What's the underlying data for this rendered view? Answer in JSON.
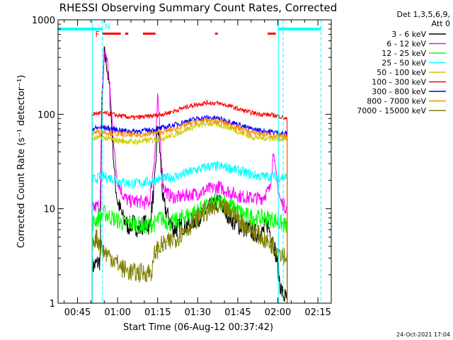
{
  "chart_data": {
    "type": "line",
    "title": "RHESSI Observing Summary Count Rates, Corrected",
    "xlabel": "Start Time (06-Aug-12 00:37:42)",
    "ylabel": "Corrected Count Rate (s⁻¹ detector⁻¹)",
    "yscale": "log",
    "ylim": [
      1,
      1000
    ],
    "xlim_minutes": [
      37.7,
      140.0
    ],
    "x_ticks": [
      {
        "t": 45,
        "label": "00:45"
      },
      {
        "t": 60,
        "label": "01:00"
      },
      {
        "t": 75,
        "label": "01:15"
      },
      {
        "t": 90,
        "label": "01:30"
      },
      {
        "t": 105,
        "label": "01:45"
      },
      {
        "t": 120,
        "label": "02:00"
      },
      {
        "t": 135,
        "label": "02:15"
      }
    ],
    "y_ticks": [
      {
        "v": 1,
        "label": "1"
      },
      {
        "v": 10,
        "label": "10"
      },
      {
        "v": 100,
        "label": "100"
      },
      {
        "v": 1000,
        "label": "1000"
      }
    ],
    "legend_header": [
      "Det 1,3,5,6,9,",
      "Att 0"
    ],
    "annotations": {
      "night_label": "N",
      "flare_label": "F"
    },
    "footer_date": "24-Oct-2021 17:04",
    "data_window_minutes": [
      50.5,
      123.5
    ],
    "series": [
      {
        "name": "3 - 6 keV",
        "color": "#000000",
        "points": [
          [
            50.5,
            2.4
          ],
          [
            52,
            2.6
          ],
          [
            53.5,
            2.8
          ],
          [
            54,
            80
          ],
          [
            55,
            440
          ],
          [
            56,
            330
          ],
          [
            57,
            180
          ],
          [
            58,
            60
          ],
          [
            59,
            20
          ],
          [
            60,
            12
          ],
          [
            62,
            8
          ],
          [
            64,
            6.5
          ],
          [
            66,
            7
          ],
          [
            68,
            6
          ],
          [
            70,
            7
          ],
          [
            72,
            6.5
          ],
          [
            74,
            20
          ],
          [
            75,
            80
          ],
          [
            76,
            35
          ],
          [
            77,
            12
          ],
          [
            79,
            8
          ],
          [
            81,
            6
          ],
          [
            84,
            6.5
          ],
          [
            87,
            7
          ],
          [
            90,
            8
          ],
          [
            94,
            10
          ],
          [
            98,
            12
          ],
          [
            101,
            9
          ],
          [
            104,
            7
          ],
          [
            106,
            6.5
          ],
          [
            109,
            6
          ],
          [
            112,
            5.5
          ],
          [
            114,
            5.5
          ],
          [
            116,
            7
          ],
          [
            118,
            5
          ],
          [
            119.5,
            3
          ],
          [
            121,
            1.5
          ],
          [
            122,
            1.2
          ],
          [
            123.5,
            1.1
          ]
        ]
      },
      {
        "name": "6 - 12 keV",
        "color": "#ff00ff",
        "points": [
          [
            50.5,
            10
          ],
          [
            53.5,
            11
          ],
          [
            54,
            120
          ],
          [
            55,
            460
          ],
          [
            56,
            400
          ],
          [
            57,
            200
          ],
          [
            58,
            80
          ],
          [
            59,
            35
          ],
          [
            60,
            20
          ],
          [
            62,
            14
          ],
          [
            64,
            12
          ],
          [
            66,
            12
          ],
          [
            68,
            12
          ],
          [
            70,
            11.5
          ],
          [
            72,
            12
          ],
          [
            74,
            40
          ],
          [
            75,
            150
          ],
          [
            76,
            55
          ],
          [
            77,
            18
          ],
          [
            79,
            14
          ],
          [
            82,
            13
          ],
          [
            86,
            14
          ],
          [
            90,
            14.5
          ],
          [
            94,
            16
          ],
          [
            98,
            17
          ],
          [
            102,
            15
          ],
          [
            106,
            13.5
          ],
          [
            110,
            13
          ],
          [
            114,
            13
          ],
          [
            117,
            16
          ],
          [
            118.5,
            45
          ],
          [
            119,
            25
          ],
          [
            121,
            12
          ],
          [
            123.5,
            10
          ]
        ]
      },
      {
        "name": "12 - 25 keV",
        "color": "#00ff00",
        "points": [
          [
            50.5,
            7
          ],
          [
            55,
            9
          ],
          [
            58,
            8
          ],
          [
            62,
            7
          ],
          [
            66,
            7
          ],
          [
            70,
            6.5
          ],
          [
            74,
            7
          ],
          [
            76,
            8
          ],
          [
            80,
            7
          ],
          [
            84,
            8
          ],
          [
            88,
            9
          ],
          [
            92,
            10
          ],
          [
            96,
            11.5
          ],
          [
            100,
            12
          ],
          [
            104,
            10
          ],
          [
            108,
            8.5
          ],
          [
            112,
            8
          ],
          [
            116,
            8
          ],
          [
            119,
            7.5
          ],
          [
            121,
            7
          ],
          [
            123.5,
            6.5
          ]
        ]
      },
      {
        "name": "25 - 50 keV",
        "color": "#00ffff",
        "points": [
          [
            50.5,
            20
          ],
          [
            54,
            22
          ],
          [
            58,
            21
          ],
          [
            62,
            19
          ],
          [
            66,
            18.5
          ],
          [
            70,
            19
          ],
          [
            74,
            20
          ],
          [
            78,
            21
          ],
          [
            82,
            22
          ],
          [
            86,
            24
          ],
          [
            90,
            26
          ],
          [
            94,
            28
          ],
          [
            98,
            28
          ],
          [
            102,
            27
          ],
          [
            106,
            25
          ],
          [
            110,
            23
          ],
          [
            114,
            22
          ],
          [
            118,
            22
          ],
          [
            121,
            21.5
          ],
          [
            123.5,
            21.5
          ]
        ]
      },
      {
        "name": "50 - 100 keV",
        "color": "#cccc00",
        "points": [
          [
            50.5,
            55
          ],
          [
            54,
            57
          ],
          [
            58,
            54
          ],
          [
            62,
            52
          ],
          [
            66,
            51
          ],
          [
            70,
            52
          ],
          [
            74,
            54
          ],
          [
            78,
            57
          ],
          [
            82,
            62
          ],
          [
            86,
            70
          ],
          [
            90,
            76
          ],
          [
            94,
            80
          ],
          [
            98,
            78
          ],
          [
            102,
            72
          ],
          [
            106,
            64
          ],
          [
            110,
            58
          ],
          [
            114,
            56
          ],
          [
            118,
            56
          ],
          [
            121,
            55
          ],
          [
            123.5,
            55
          ]
        ]
      },
      {
        "name": "100 - 300 keV",
        "color": "#ff0000",
        "points": [
          [
            50.5,
            100
          ],
          [
            54,
            104
          ],
          [
            58,
            100
          ],
          [
            62,
            95
          ],
          [
            66,
            92
          ],
          [
            70,
            94
          ],
          [
            74,
            97
          ],
          [
            78,
            102
          ],
          [
            82,
            110
          ],
          [
            86,
            120
          ],
          [
            90,
            128
          ],
          [
            94,
            133
          ],
          [
            98,
            130
          ],
          [
            102,
            122
          ],
          [
            106,
            112
          ],
          [
            110,
            104
          ],
          [
            114,
            100
          ],
          [
            118,
            98
          ],
          [
            121,
            95
          ],
          [
            123.5,
            88
          ]
        ]
      },
      {
        "name": "300 - 800 keV",
        "color": "#0000ff",
        "points": [
          [
            50.5,
            70
          ],
          [
            54,
            73
          ],
          [
            58,
            70
          ],
          [
            62,
            67
          ],
          [
            66,
            66
          ],
          [
            70,
            67
          ],
          [
            74,
            69
          ],
          [
            78,
            73
          ],
          [
            82,
            78
          ],
          [
            86,
            85
          ],
          [
            90,
            90
          ],
          [
            94,
            92
          ],
          [
            98,
            90
          ],
          [
            102,
            84
          ],
          [
            106,
            76
          ],
          [
            110,
            70
          ],
          [
            114,
            67
          ],
          [
            118,
            65
          ],
          [
            121,
            63
          ],
          [
            123.5,
            62
          ]
        ]
      },
      {
        "name": "800 - 7000 keV",
        "color": "#ff8800",
        "points": [
          [
            50.5,
            64
          ],
          [
            54,
            66
          ],
          [
            58,
            63
          ],
          [
            62,
            61
          ],
          [
            66,
            60
          ],
          [
            70,
            61
          ],
          [
            74,
            63
          ],
          [
            78,
            66
          ],
          [
            82,
            71
          ],
          [
            86,
            78
          ],
          [
            90,
            84
          ],
          [
            94,
            86
          ],
          [
            98,
            84
          ],
          [
            102,
            78
          ],
          [
            106,
            70
          ],
          [
            110,
            64
          ],
          [
            114,
            62
          ],
          [
            118,
            60
          ],
          [
            121,
            58
          ],
          [
            123.5,
            58
          ]
        ]
      },
      {
        "name": "7000 - 15000 keV",
        "color": "#808000",
        "points": [
          [
            50.5,
            4.5
          ],
          [
            52,
            5
          ],
          [
            55,
            3.5
          ],
          [
            58,
            3
          ],
          [
            62,
            2.3
          ],
          [
            66,
            2.1
          ],
          [
            70,
            2.1
          ],
          [
            73,
            2.2
          ],
          [
            74,
            3.5
          ],
          [
            76,
            4
          ],
          [
            80,
            4.5
          ],
          [
            84,
            5.5
          ],
          [
            88,
            7
          ],
          [
            92,
            9
          ],
          [
            96,
            10
          ],
          [
            100,
            10
          ],
          [
            104,
            8.5
          ],
          [
            108,
            6.5
          ],
          [
            112,
            5.5
          ],
          [
            116,
            4.5
          ],
          [
            119,
            4
          ],
          [
            121,
            3.5
          ],
          [
            123.5,
            3
          ]
        ]
      }
    ],
    "cyan_bars": [
      [
        37.7,
        54.3
      ],
      [
        120.2,
        136.2
      ]
    ],
    "flare_bars": [
      [
        54.3,
        61.2
      ],
      [
        62.8,
        64.0
      ],
      [
        69.5,
        74.2
      ],
      [
        96.5,
        97.5
      ],
      [
        116.2,
        119.2
      ]
    ],
    "cyan_lines_solid": [
      50.5,
      120.2
    ],
    "cyan_lines_dashed": [
      54.3,
      122.0,
      136.2
    ]
  }
}
